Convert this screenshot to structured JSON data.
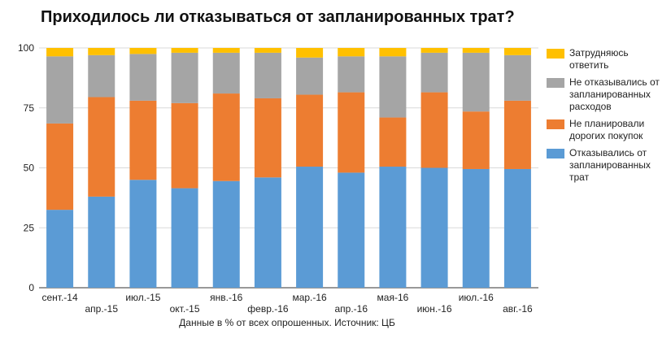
{
  "title": "Приходилось ли отказываться от запланированных трат?",
  "note": "Данные в % от всех опрошенных. Источник: ЦБ",
  "chart_data": {
    "type": "bar",
    "stacked": true,
    "categories": [
      "сент.-14",
      "апр.-15",
      "июл.-15",
      "окт.-15",
      "янв.-16",
      "февр.-16",
      "мар.-16",
      "апр.-16",
      "мая-16",
      "июн.-16",
      "июл.-16",
      "авг.-16"
    ],
    "ylim": [
      0,
      100
    ],
    "yticks": [
      0,
      25,
      50,
      75,
      100
    ],
    "grid": true,
    "legend_position": "right",
    "series": [
      {
        "name": "Отказывались от запланированных трат",
        "color": "#5b9bd5",
        "values": [
          32.5,
          38,
          45,
          41.5,
          44.5,
          46,
          50.5,
          48,
          50.5,
          50,
          49.5,
          49.5
        ]
      },
      {
        "name": "Не планировали дорогих покупок",
        "color": "#ed7d31",
        "values": [
          36,
          41.5,
          33,
          35.5,
          36.5,
          33,
          30,
          33.5,
          20.5,
          31.5,
          24,
          28.5
        ]
      },
      {
        "name": "Не отказывались от запланированных расходов",
        "color": "#a5a5a5",
        "values": [
          28,
          17.5,
          19.5,
          21,
          17,
          19,
          15.5,
          15,
          25.5,
          16.5,
          24.5,
          19
        ]
      },
      {
        "name": "Затрудняюсь ответить",
        "color": "#ffc000",
        "values": [
          3.5,
          3,
          2.5,
          2,
          2,
          2,
          4,
          3.5,
          3.5,
          2,
          2,
          3
        ]
      }
    ]
  },
  "legend_order": [
    3,
    2,
    1,
    0
  ]
}
